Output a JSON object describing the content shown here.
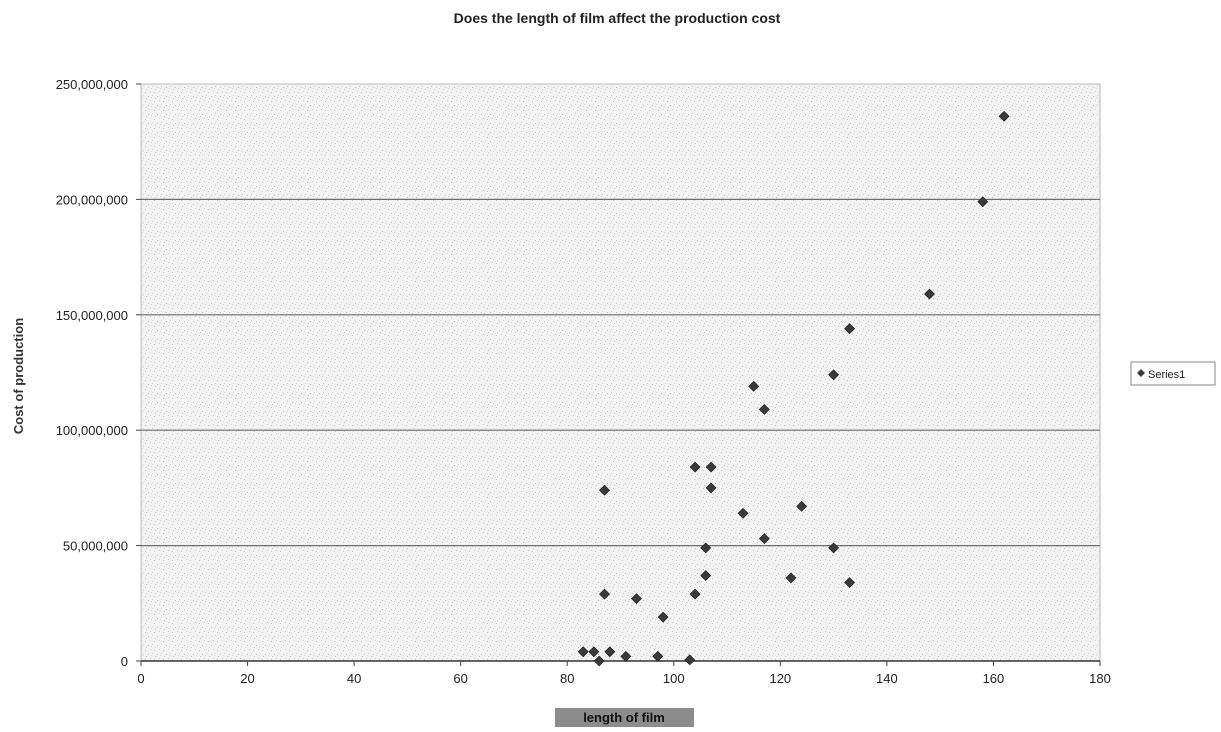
{
  "chart_data": {
    "type": "scatter",
    "title": "Does the length of film affect the production cost",
    "xlabel": "length of film",
    "ylabel": "Cost of production",
    "xlim": [
      0,
      180
    ],
    "ylim": [
      0,
      250000000
    ],
    "x_ticks": [
      "0",
      "20",
      "40",
      "60",
      "80",
      "100",
      "120",
      "140",
      "160",
      "180"
    ],
    "y_ticks": [
      "0",
      "50,000,000",
      "100,000,000",
      "150,000,000",
      "200,000,000",
      "250,000,000"
    ],
    "grid": "horizontal major gridlines",
    "legend_position": "right",
    "series": [
      {
        "name": "Series1",
        "color": "#3a3a3a",
        "marker": "diamond",
        "points": [
          {
            "x": 83,
            "y": 4000000
          },
          {
            "x": 85,
            "y": 4000000
          },
          {
            "x": 86,
            "y": 0
          },
          {
            "x": 87,
            "y": 29000000
          },
          {
            "x": 87,
            "y": 74000000
          },
          {
            "x": 88,
            "y": 4000000
          },
          {
            "x": 91,
            "y": 2000000
          },
          {
            "x": 93,
            "y": 27000000
          },
          {
            "x": 97,
            "y": 2000000
          },
          {
            "x": 98,
            "y": 19000000
          },
          {
            "x": 103,
            "y": 500000
          },
          {
            "x": 104,
            "y": 29000000
          },
          {
            "x": 104,
            "y": 84000000
          },
          {
            "x": 106,
            "y": 37000000
          },
          {
            "x": 106,
            "y": 49000000
          },
          {
            "x": 107,
            "y": 75000000
          },
          {
            "x": 107,
            "y": 84000000
          },
          {
            "x": 113,
            "y": 64000000
          },
          {
            "x": 115,
            "y": 119000000
          },
          {
            "x": 117,
            "y": 53000000
          },
          {
            "x": 117,
            "y": 109000000
          },
          {
            "x": 122,
            "y": 36000000
          },
          {
            "x": 124,
            "y": 67000000
          },
          {
            "x": 130,
            "y": 49000000
          },
          {
            "x": 130,
            "y": 124000000
          },
          {
            "x": 133,
            "y": 34000000
          },
          {
            "x": 133,
            "y": 144000000
          },
          {
            "x": 148,
            "y": 159000000
          },
          {
            "x": 158,
            "y": 199000000
          },
          {
            "x": 162,
            "y": 236000000
          }
        ]
      }
    ]
  }
}
